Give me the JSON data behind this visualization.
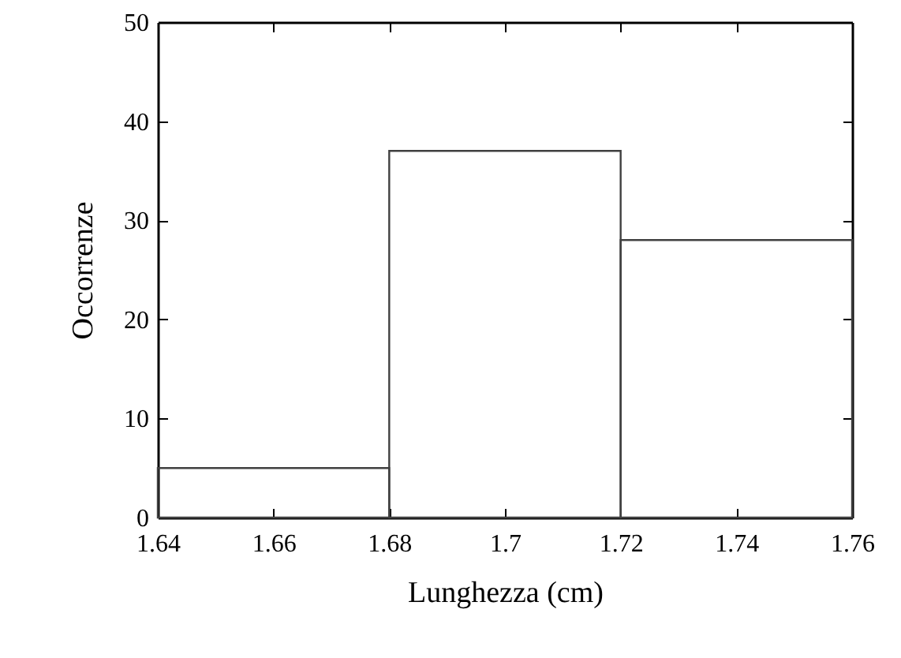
{
  "chart_data": {
    "type": "histogram",
    "xlabel": "Lunghezza (cm)",
    "ylabel": "Occorrenze",
    "bins": [
      1.64,
      1.68,
      1.72,
      1.76
    ],
    "values": [
      5,
      37,
      28
    ],
    "color": "#404040",
    "xlim": [
      1.64,
      1.76
    ],
    "xticks": [
      1.64,
      1.66,
      1.68,
      1.7,
      1.72,
      1.74,
      1.76
    ],
    "ylim": [
      0,
      50
    ],
    "yticks": [
      0,
      10,
      20,
      30,
      40,
      50
    ],
    "grid": false
  }
}
